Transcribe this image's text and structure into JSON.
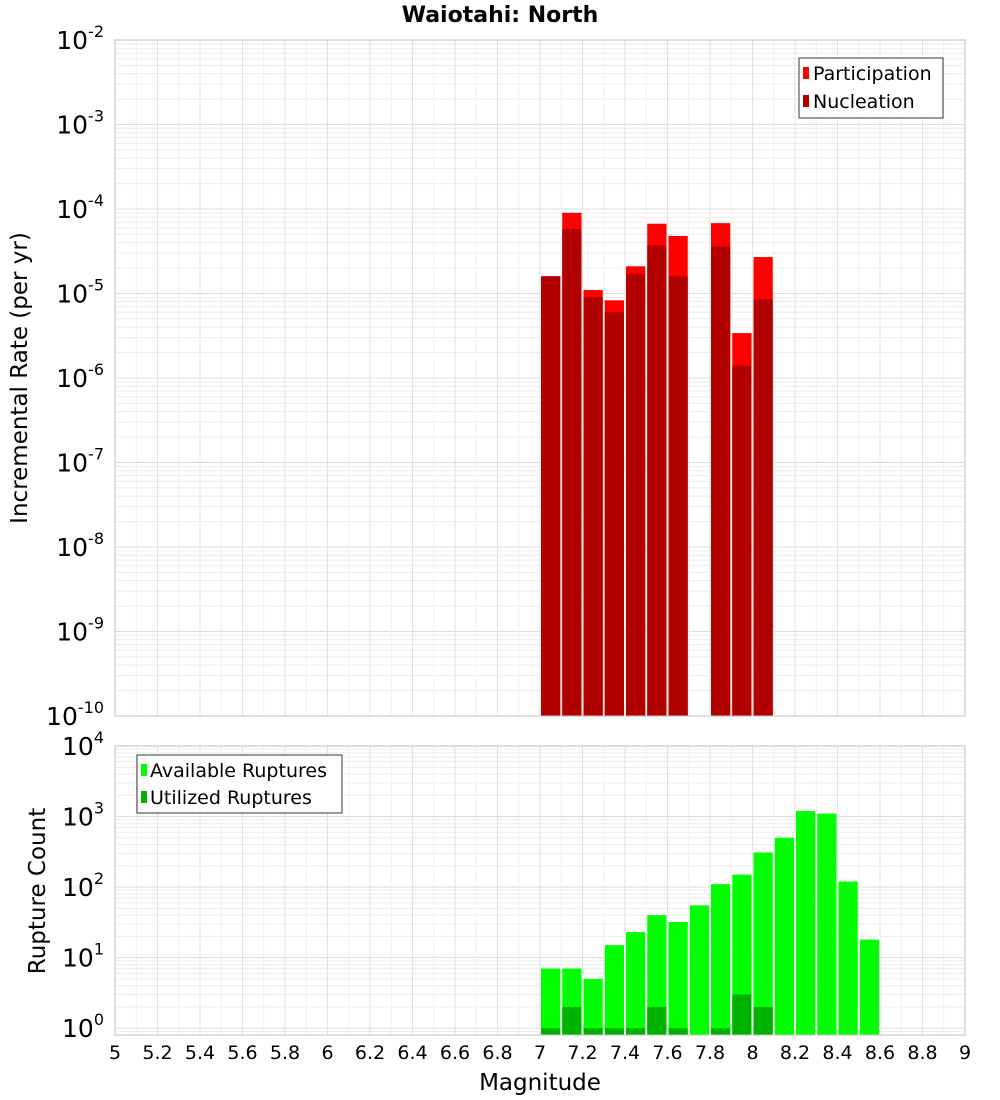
{
  "chart_data": [
    {
      "type": "bar",
      "title": "Waiotahi: North",
      "xlabel": "Magnitude",
      "ylabel": "Incremental Rate (per yr)",
      "y_scale": "log",
      "ylim": [
        1e-10,
        0.01
      ],
      "xlim": [
        5,
        9
      ],
      "y_ticks": [
        {
          "base": "10",
          "exp": "-10"
        },
        {
          "base": "10",
          "exp": "-9"
        },
        {
          "base": "10",
          "exp": "-8"
        },
        {
          "base": "10",
          "exp": "-7"
        },
        {
          "base": "10",
          "exp": "-6"
        },
        {
          "base": "10",
          "exp": "-5"
        },
        {
          "base": "10",
          "exp": "-4"
        },
        {
          "base": "10",
          "exp": "-3"
        },
        {
          "base": "10",
          "exp": "-2"
        }
      ],
      "grid": true,
      "legend_position": "top-right",
      "series": [
        {
          "name": "Participation",
          "color": "#ff0000",
          "points": [
            {
              "x": 7.05,
              "y": 1.6e-05
            },
            {
              "x": 7.15,
              "y": 9e-05
            },
            {
              "x": 7.25,
              "y": 1.1e-05
            },
            {
              "x": 7.35,
              "y": 8.3e-06
            },
            {
              "x": 7.45,
              "y": 2.1e-05
            },
            {
              "x": 7.55,
              "y": 6.7e-05
            },
            {
              "x": 7.65,
              "y": 4.8e-05
            },
            {
              "x": 7.85,
              "y": 6.8e-05
            },
            {
              "x": 7.95,
              "y": 3.4e-06
            },
            {
              "x": 8.05,
              "y": 2.7e-05
            }
          ]
        },
        {
          "name": "Nucleation",
          "color": "#b20000",
          "points": [
            {
              "x": 7.05,
              "y": 1.6e-05
            },
            {
              "x": 7.15,
              "y": 5.8e-05
            },
            {
              "x": 7.25,
              "y": 9e-06
            },
            {
              "x": 7.35,
              "y": 6e-06
            },
            {
              "x": 7.45,
              "y": 1.7e-05
            },
            {
              "x": 7.55,
              "y": 3.7e-05
            },
            {
              "x": 7.65,
              "y": 1.6e-05
            },
            {
              "x": 7.85,
              "y": 3.6e-05
            },
            {
              "x": 7.95,
              "y": 1.4e-06
            },
            {
              "x": 8.05,
              "y": 8.5e-06
            }
          ]
        }
      ]
    },
    {
      "type": "bar",
      "title": "",
      "xlabel": "Magnitude",
      "ylabel": "Rupture Count",
      "y_scale": "log",
      "ylim": [
        0.8,
        10000
      ],
      "xlim": [
        5,
        9
      ],
      "x_ticks": [
        "5",
        "5.2",
        "5.4",
        "5.6",
        "5.8",
        "6",
        "6.2",
        "6.4",
        "6.6",
        "6.8",
        "7",
        "7.2",
        "7.4",
        "7.6",
        "7.8",
        "8",
        "8.2",
        "8.4",
        "8.6",
        "8.8",
        "9"
      ],
      "y_ticks": [
        {
          "base": "10",
          "exp": "0"
        },
        {
          "base": "10",
          "exp": "1"
        },
        {
          "base": "10",
          "exp": "2"
        },
        {
          "base": "10",
          "exp": "3"
        },
        {
          "base": "10",
          "exp": "4"
        }
      ],
      "grid": true,
      "legend_position": "top-left",
      "series": [
        {
          "name": "Available Ruptures",
          "color": "#00ff00",
          "points": [
            {
              "x": 7.05,
              "y": 7
            },
            {
              "x": 7.15,
              "y": 7
            },
            {
              "x": 7.25,
              "y": 5
            },
            {
              "x": 7.35,
              "y": 15
            },
            {
              "x": 7.45,
              "y": 23
            },
            {
              "x": 7.55,
              "y": 40
            },
            {
              "x": 7.65,
              "y": 32
            },
            {
              "x": 7.75,
              "y": 55
            },
            {
              "x": 7.85,
              "y": 110
            },
            {
              "x": 7.95,
              "y": 150
            },
            {
              "x": 8.05,
              "y": 310
            },
            {
              "x": 8.15,
              "y": 500
            },
            {
              "x": 8.25,
              "y": 1200
            },
            {
              "x": 8.35,
              "y": 1100
            },
            {
              "x": 8.45,
              "y": 120
            },
            {
              "x": 8.55,
              "y": 18
            }
          ]
        },
        {
          "name": "Utilized Ruptures",
          "color": "#00b200",
          "points": [
            {
              "x": 7.05,
              "y": 1
            },
            {
              "x": 7.15,
              "y": 2
            },
            {
              "x": 7.25,
              "y": 1
            },
            {
              "x": 7.35,
              "y": 1
            },
            {
              "x": 7.45,
              "y": 1
            },
            {
              "x": 7.55,
              "y": 2
            },
            {
              "x": 7.65,
              "y": 1
            },
            {
              "x": 7.85,
              "y": 1
            },
            {
              "x": 7.95,
              "y": 3
            },
            {
              "x": 8.05,
              "y": 2
            }
          ]
        }
      ]
    }
  ]
}
